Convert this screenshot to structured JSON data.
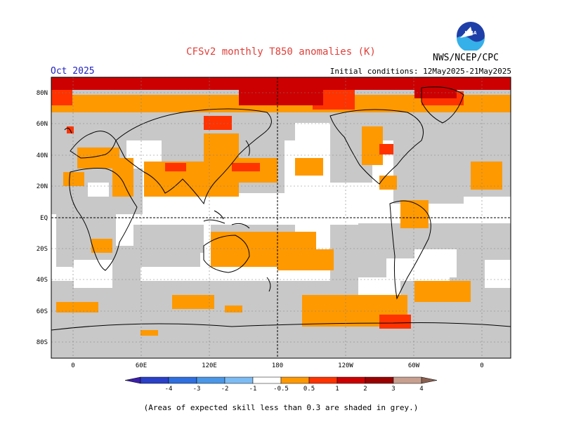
{
  "header": {
    "title": "CFSv2 monthly T850 anomalies (K)",
    "period": "Oct 2025",
    "initial_conditions": "Initial conditions: 12May2025-21May2025",
    "organization": "NWS/NCEP/CPC",
    "logo_text": "NOAA"
  },
  "map": {
    "lat_labels": [
      "80N",
      "60N",
      "40N",
      "20N",
      "EQ",
      "20S",
      "40S",
      "60S",
      "80S"
    ],
    "lon_labels": [
      "0",
      "60E",
      "120E",
      "180",
      "120W",
      "60W",
      "0"
    ],
    "mask_color": "#c8c8c8"
  },
  "legend": {
    "labels": [
      "-4",
      "-3",
      "-2",
      "-1",
      "-0.5",
      "0.5",
      "1",
      "2",
      "3",
      "4"
    ],
    "colors": [
      "#3a1fa8",
      "#2a40c8",
      "#2f6fe0",
      "#4a97e8",
      "#7cbcf4",
      "#ffffff",
      "#ff9900",
      "#ff3300",
      "#cc0000",
      "#990000",
      "#c8a090",
      "#8a6050"
    ]
  },
  "footnote": "(Areas of expected skill less than 0.3 are shaded in grey.)"
}
